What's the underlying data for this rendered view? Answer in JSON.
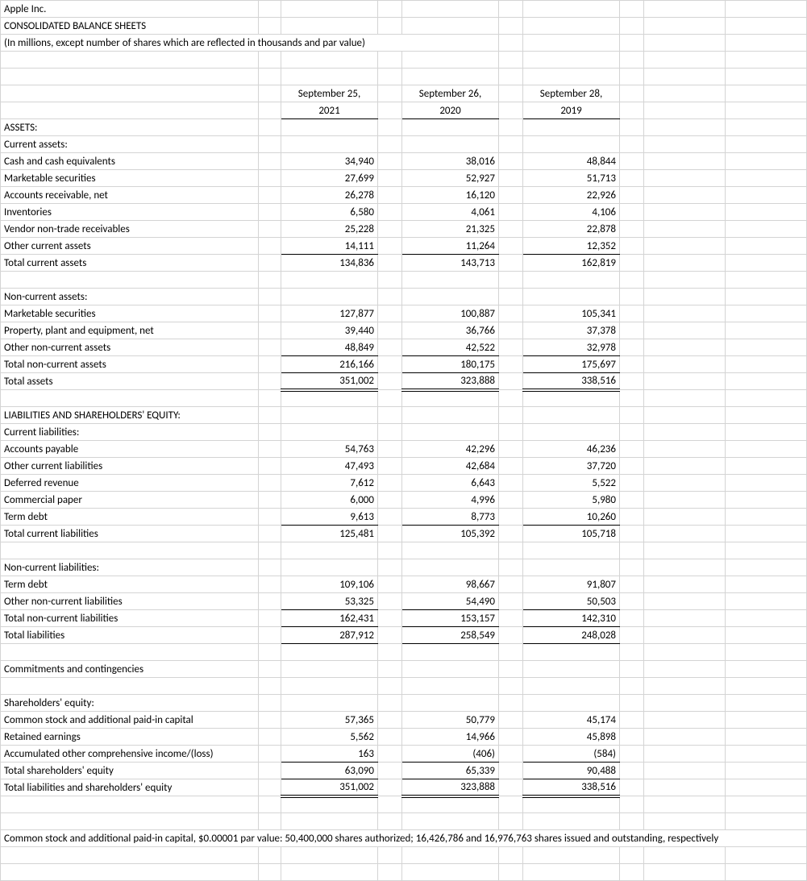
{
  "header": {
    "company": "Apple Inc.",
    "title": "CONSOLIDATED BALANCE SHEETS",
    "subtitle": "(In millions, except number of shares which are reflected in thousands and par value)"
  },
  "periods": {
    "p1": {
      "date_line1": "September 25,",
      "date_line2": "2021"
    },
    "p2": {
      "date_line1": "September 26,",
      "date_line2": "2020"
    },
    "p3": {
      "date_line1": "September 28,",
      "date_line2": "2019"
    }
  },
  "sections": {
    "assets_heading": "ASSETS:",
    "current_assets": {
      "heading": "Current assets:",
      "items": [
        {
          "label": "Cash and cash equivalents",
          "v": [
            "34,940",
            "38,016",
            "48,844"
          ]
        },
        {
          "label": "Marketable securities",
          "v": [
            "27,699",
            "52,927",
            "51,713"
          ]
        },
        {
          "label": "Accounts receivable, net",
          "v": [
            "26,278",
            "16,120",
            "22,926"
          ]
        },
        {
          "label": "Inventories",
          "v": [
            "6,580",
            "4,061",
            "4,106"
          ]
        },
        {
          "label": "Vendor non-trade receivables",
          "v": [
            "25,228",
            "21,325",
            "22,878"
          ]
        },
        {
          "label": "Other current assets",
          "v": [
            "14,111",
            "11,264",
            "12,352"
          ]
        }
      ],
      "total": {
        "label": "Total current assets",
        "v": [
          "134,836",
          "143,713",
          "162,819"
        ]
      }
    },
    "noncurrent_assets": {
      "heading": "Non-current assets:",
      "items": [
        {
          "label": "Marketable securities",
          "v": [
            "127,877",
            "100,887",
            "105,341"
          ]
        },
        {
          "label": "Property, plant and equipment, net",
          "v": [
            "39,440",
            "36,766",
            "37,378"
          ]
        },
        {
          "label": "Other non-current assets",
          "v": [
            "48,849",
            "42,522",
            "32,978"
          ]
        }
      ],
      "total": {
        "label": "Total non-current assets",
        "v": [
          "216,166",
          "180,175",
          "175,697"
        ]
      },
      "grand_total": {
        "label": "Total assets",
        "v": [
          "351,002",
          "323,888",
          "338,516"
        ]
      }
    },
    "liab_heading": "LIABILITIES AND SHAREHOLDERS' EQUITY:",
    "current_liab": {
      "heading": "Current liabilities:",
      "items": [
        {
          "label": "Accounts payable",
          "v": [
            "54,763",
            "42,296",
            "46,236"
          ]
        },
        {
          "label": "Other current liabilities",
          "v": [
            "47,493",
            "42,684",
            "37,720"
          ]
        },
        {
          "label": "Deferred revenue",
          "v": [
            "7,612",
            "6,643",
            "5,522"
          ]
        },
        {
          "label": "Commercial paper",
          "v": [
            "6,000",
            "4,996",
            "5,980"
          ]
        },
        {
          "label": "Term debt",
          "v": [
            "9,613",
            "8,773",
            "10,260"
          ]
        }
      ],
      "total": {
        "label": "Total current liabilities",
        "v": [
          "125,481",
          "105,392",
          "105,718"
        ]
      }
    },
    "noncurrent_liab": {
      "heading": "Non-current liabilities:",
      "items": [
        {
          "label": "Term debt",
          "v": [
            "109,106",
            "98,667",
            "91,807"
          ]
        },
        {
          "label": "Other non-current liabilities",
          "v": [
            "53,325",
            "54,490",
            "50,503"
          ]
        }
      ],
      "total": {
        "label": "Total non-current liabilities",
        "v": [
          "162,431",
          "153,157",
          "142,310"
        ]
      },
      "grand_total": {
        "label": "Total liabilities",
        "v": [
          "287,912",
          "258,549",
          "248,028"
        ]
      }
    },
    "commitments": "Commitments and contingencies",
    "equity": {
      "heading": "Shareholders' equity:",
      "items": [
        {
          "label": "Common stock and additional paid-in capital",
          "v": [
            "57,365",
            "50,779",
            "45,174"
          ]
        },
        {
          "label": "Retained earnings",
          "v": [
            "5,562",
            "14,966",
            "45,898"
          ]
        },
        {
          "label": "Accumulated other comprehensive income/(loss)",
          "v": [
            "163",
            "(406)",
            "(584)"
          ]
        }
      ],
      "total": {
        "label": "Total shareholders' equity",
        "v": [
          "63,090",
          "65,339",
          "90,488"
        ]
      },
      "grand_total": {
        "label": "Total liabilities and shareholders' equity",
        "v": [
          "351,002",
          "323,888",
          "338,516"
        ]
      }
    },
    "footnote": "Common stock and additional paid-in capital, $0.00001 par value: 50,400,000 shares authorized; 16,426,786 and 16,976,763 shares issued and outstanding, respectively"
  },
  "style": {
    "grid_color": "#d4d4d4",
    "rule_color": "#000000",
    "font_size": 13,
    "background": "#ffffff"
  }
}
